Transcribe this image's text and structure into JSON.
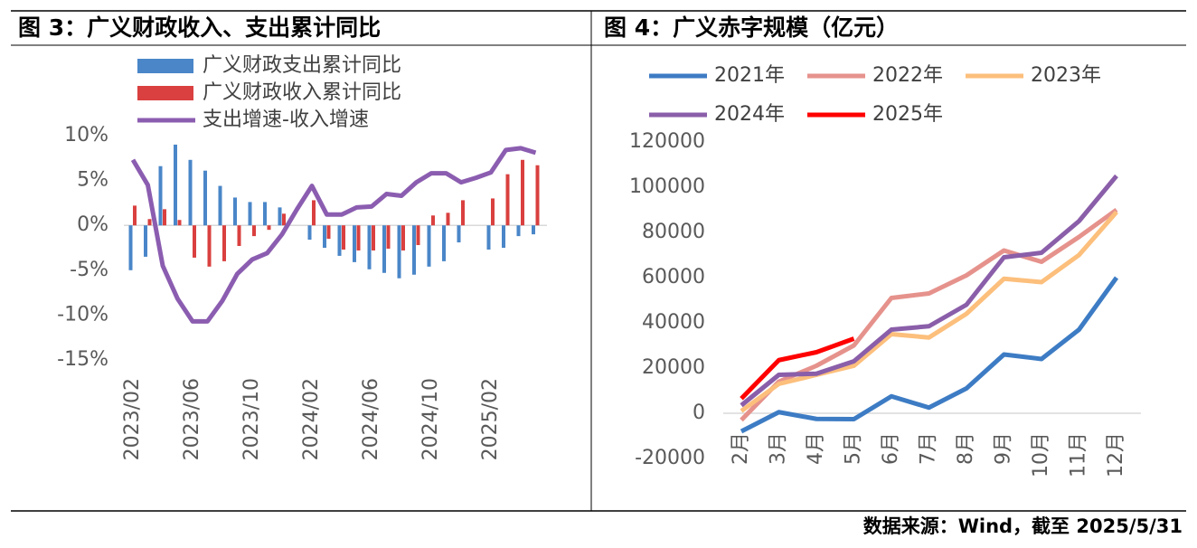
{
  "chart_data": [
    {
      "type": "bar",
      "title": "图 3：广义财政收入、支出累计同比",
      "categories": [
        "2023/02",
        null,
        null,
        null,
        "2023/06",
        null,
        null,
        null,
        "2023/10",
        null,
        null,
        null,
        "2024/02",
        null,
        null,
        null,
        "2024/06",
        null,
        null,
        null,
        "2024/10",
        null,
        null,
        null,
        "2025/02",
        null,
        null,
        null
      ],
      "series": [
        {
          "name": "广义财政支出累计同比",
          "type": "bar",
          "color": "#4a86c8",
          "values": [
            -5,
            -3.5,
            6.6,
            9.0,
            7.3,
            6.1,
            4.4,
            3.1,
            2.6,
            2.6,
            2.0,
            null,
            -1.6,
            -2.5,
            -3.4,
            -4.1,
            -4.9,
            -5.3,
            -5.9,
            -5.5,
            -4.6,
            -4.0,
            -1.9,
            null,
            -2.7,
            -2.5,
            -1.2,
            -1.0
          ]
        },
        {
          "name": "广义财政收入累计同比",
          "type": "bar",
          "color": "#d9403f",
          "values": [
            2.2,
            0.7,
            1.8,
            0.6,
            -3.6,
            -4.6,
            -4.0,
            -2.3,
            -1.2,
            -0.5,
            1.3,
            null,
            2.8,
            -1.5,
            -2.7,
            -2.8,
            -2.8,
            -2.6,
            -2.8,
            -2.2,
            1.1,
            1.4,
            2.8,
            null,
            3.0,
            5.7,
            7.3,
            6.7
          ]
        },
        {
          "name": "支出增速-收入增速",
          "type": "line",
          "color": "#8b5db0",
          "values": [
            7.3,
            4.5,
            -4.5,
            -8.2,
            -10.7,
            -10.7,
            -8.4,
            -5.4,
            -3.8,
            -3.1,
            -1.0,
            1.8,
            4.4,
            1.2,
            1.2,
            2.0,
            2.1,
            3.5,
            3.3,
            4.8,
            5.8,
            5.8,
            4.8,
            5.3,
            5.9,
            8.4,
            8.6,
            8.1
          ]
        }
      ],
      "ylim": [
        -15,
        10
      ],
      "yticks": [
        {
          "value": -15,
          "label": "-15%"
        },
        {
          "value": -10,
          "label": "-10%"
        },
        {
          "value": -5,
          "label": "-5%"
        },
        {
          "value": 0,
          "label": "0%"
        },
        {
          "value": 5,
          "label": "5%"
        },
        {
          "value": 10,
          "label": "10%"
        }
      ]
    },
    {
      "type": "line",
      "title": "图 4：广义赤字规模（亿元）",
      "categories": [
        "2月",
        "3月",
        "4月",
        "5月",
        "6月",
        "7月",
        "8月",
        "9月",
        "10月",
        "11月",
        "12月"
      ],
      "series": [
        {
          "name": "2021年",
          "color": "#3d7cc4",
          "values": [
            -8000,
            500,
            -2500,
            -2600,
            7500,
            2500,
            11000,
            26000,
            24000,
            37000,
            60000
          ]
        },
        {
          "name": "2022年",
          "color": "#e6928c",
          "values": [
            -3000,
            14000,
            21000,
            30000,
            51000,
            53000,
            61000,
            72000,
            67000,
            78000,
            90000
          ]
        },
        {
          "name": "2023年",
          "color": "#fcbf7c",
          "values": [
            1000,
            13000,
            17000,
            21000,
            35000,
            33500,
            44000,
            59500,
            58000,
            70000,
            89000
          ]
        },
        {
          "name": "2024年",
          "color": "#8a5ea9",
          "values": [
            3500,
            17000,
            17500,
            23000,
            37000,
            38500,
            48000,
            69000,
            71000,
            85000,
            105000
          ]
        },
        {
          "name": "2025年",
          "color": "#ff0000",
          "values": [
            6500,
            23500,
            27000,
            33000,
            null,
            null,
            null,
            null,
            null,
            null,
            null
          ]
        }
      ],
      "ylim": [
        -20000,
        120000
      ],
      "yticks": [
        -20000,
        0,
        20000,
        40000,
        60000,
        80000,
        100000,
        120000
      ]
    }
  ],
  "source": "数据来源：Wind，截至 2025/5/31"
}
